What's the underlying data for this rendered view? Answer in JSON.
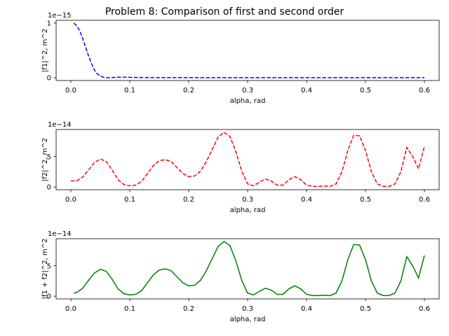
{
  "chart_data": [
    {
      "type": "line",
      "title": "Problem 8: Comparison of first and second order",
      "xlabel": "alpha, rad",
      "ylabel": "|f1|^2, m^2",
      "scale_label": "1e−15",
      "xlim": [
        -0.025,
        0.625
      ],
      "ylim": [
        -0.05,
        1.05
      ],
      "xticks": [
        0.0,
        0.1,
        0.2,
        0.3,
        0.4,
        0.5,
        0.6
      ],
      "xtick_labels": [
        "0.0",
        "0.1",
        "0.2",
        "0.3",
        "0.4",
        "0.5",
        "0.6"
      ],
      "yticks": [
        0,
        1
      ],
      "ytick_labels": [
        "0",
        "1"
      ],
      "series": [
        {
          "color": "#0000ff",
          "style": "dashed",
          "x": [
            0.005,
            0.01,
            0.015,
            0.02,
            0.025,
            0.03,
            0.035,
            0.04,
            0.045,
            0.05,
            0.055,
            0.06,
            0.07,
            0.08,
            0.09,
            0.1,
            0.12,
            0.15,
            0.2,
            0.3,
            0.4,
            0.5,
            0.6
          ],
          "y": [
            1.0,
            0.95,
            0.86,
            0.72,
            0.56,
            0.4,
            0.26,
            0.14,
            0.07,
            0.03,
            0.01,
            0.0,
            0.005,
            0.01,
            0.01,
            0.008,
            0.004,
            0.002,
            0.002,
            0.001,
            0.001,
            0.001,
            0.001
          ]
        }
      ]
    },
    {
      "type": "line",
      "xlabel": "alpha, rad",
      "ylabel": "|f2|^2, m^2",
      "scale_label": "1e−14",
      "xlim": [
        -0.025,
        0.625
      ],
      "ylim": [
        -0.45,
        9.45
      ],
      "xticks": [
        0.0,
        0.1,
        0.2,
        0.3,
        0.4,
        0.5,
        0.6
      ],
      "xtick_labels": [
        "0.0",
        "0.1",
        "0.2",
        "0.3",
        "0.4",
        "0.5",
        "0.6"
      ],
      "yticks": [
        0,
        5
      ],
      "ytick_labels": [
        "0",
        "5"
      ],
      "series": [
        {
          "color": "#ff0000",
          "style": "dashed",
          "x": [
            0.0,
            0.01,
            0.02,
            0.03,
            0.04,
            0.05,
            0.06,
            0.07,
            0.08,
            0.09,
            0.1,
            0.11,
            0.12,
            0.13,
            0.14,
            0.15,
            0.16,
            0.17,
            0.18,
            0.19,
            0.2,
            0.21,
            0.22,
            0.23,
            0.24,
            0.25,
            0.26,
            0.27,
            0.28,
            0.29,
            0.3,
            0.31,
            0.32,
            0.33,
            0.34,
            0.35,
            0.36,
            0.37,
            0.38,
            0.39,
            0.4,
            0.41,
            0.42,
            0.43,
            0.44,
            0.45,
            0.46,
            0.47,
            0.48,
            0.49,
            0.5,
            0.51,
            0.52,
            0.53,
            0.54,
            0.55,
            0.56,
            0.57,
            0.58,
            0.59,
            0.6
          ],
          "y": [
            1.0,
            1.0,
            1.6,
            2.8,
            4.0,
            4.6,
            4.2,
            2.8,
            1.2,
            0.4,
            0.2,
            0.3,
            0.9,
            2.2,
            3.5,
            4.3,
            4.5,
            4.2,
            3.2,
            2.2,
            1.7,
            1.8,
            2.6,
            4.2,
            6.2,
            8.2,
            9.0,
            8.3,
            5.8,
            2.6,
            0.5,
            0.2,
            0.8,
            1.3,
            1.0,
            0.3,
            0.3,
            1.2,
            1.7,
            1.2,
            0.3,
            0.1,
            0.1,
            0.15,
            0.1,
            0.5,
            2.5,
            6.0,
            8.5,
            8.4,
            6.0,
            2.5,
            0.5,
            0.1,
            0.1,
            0.5,
            2.5,
            6.5,
            5.0,
            3.0,
            6.7
          ]
        }
      ]
    },
    {
      "type": "line",
      "xlabel": "alpha, rad",
      "ylabel": "|f1 + f2|^2, m^2",
      "scale_label": "1e−14",
      "xlim": [
        -0.025,
        0.625
      ],
      "ylim": [
        -0.45,
        9.45
      ],
      "xticks": [
        0.0,
        0.1,
        0.2,
        0.3,
        0.4,
        0.5,
        0.6
      ],
      "xtick_labels": [
        "0.0",
        "0.1",
        "0.2",
        "0.3",
        "0.4",
        "0.5",
        "0.6"
      ],
      "yticks": [
        0,
        5
      ],
      "ytick_labels": [
        "0",
        "5"
      ],
      "series": [
        {
          "color": "#008000",
          "style": "solid",
          "x": [
            0.005,
            0.01,
            0.02,
            0.03,
            0.04,
            0.05,
            0.06,
            0.07,
            0.08,
            0.09,
            0.1,
            0.11,
            0.12,
            0.13,
            0.14,
            0.15,
            0.16,
            0.17,
            0.18,
            0.19,
            0.2,
            0.21,
            0.22,
            0.23,
            0.24,
            0.25,
            0.26,
            0.27,
            0.28,
            0.29,
            0.3,
            0.31,
            0.32,
            0.33,
            0.34,
            0.35,
            0.36,
            0.37,
            0.38,
            0.39,
            0.4,
            0.41,
            0.42,
            0.43,
            0.44,
            0.45,
            0.46,
            0.47,
            0.48,
            0.49,
            0.5,
            0.51,
            0.52,
            0.53,
            0.54,
            0.55,
            0.56,
            0.57,
            0.58,
            0.59,
            0.6
          ],
          "y": [
            0.5,
            0.6,
            1.3,
            2.6,
            3.8,
            4.4,
            4.1,
            2.8,
            1.2,
            0.4,
            0.2,
            0.3,
            0.9,
            2.2,
            3.5,
            4.3,
            4.5,
            4.2,
            3.2,
            2.2,
            1.7,
            1.8,
            2.6,
            4.2,
            6.2,
            8.2,
            9.0,
            8.3,
            5.8,
            2.6,
            0.5,
            0.2,
            0.8,
            1.3,
            1.0,
            0.3,
            0.3,
            1.2,
            1.7,
            1.2,
            0.3,
            0.1,
            0.1,
            0.15,
            0.1,
            0.5,
            2.5,
            6.0,
            8.5,
            8.4,
            6.0,
            2.5,
            0.5,
            0.1,
            0.1,
            0.5,
            2.5,
            6.5,
            5.0,
            3.0,
            6.7
          ]
        }
      ]
    }
  ]
}
